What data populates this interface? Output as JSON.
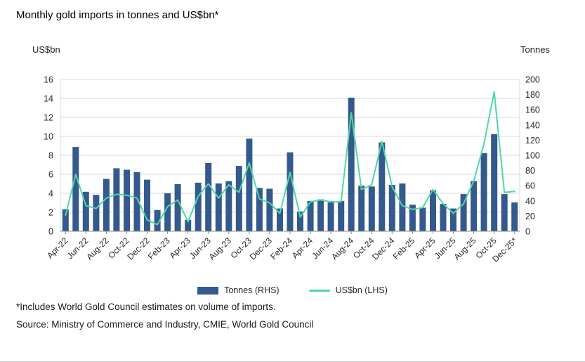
{
  "title": "Monthly gold imports in tonnes and US$bn*",
  "left_axis_unit": "US$bn",
  "right_axis_unit": "Tonnes",
  "legend": {
    "tonnes_label": "Tonnes (RHS)",
    "usdbn_label": "US$bn (LHS)"
  },
  "footnote": "*Includes World Gold Council estimates on volume of imports.",
  "source": "Source: Ministry of Commerce and Industry, CMIE, World Gold Council",
  "colors": {
    "bar": "#34598C",
    "line": "#4FD8A4",
    "grid": "#DADADA",
    "axis": "#999999",
    "text": "#262626"
  },
  "chart_data": {
    "type": "bar+line combo",
    "title": "Monthly gold imports in tonnes and US$bn*",
    "x": [
      "Apr-22",
      "May-22",
      "Jun-22",
      "Jul-22",
      "Aug-22",
      "Sep-22",
      "Oct-22",
      "Nov-22",
      "Dec-22",
      "Jan-23",
      "Feb-23",
      "Mar-23",
      "Apr-23",
      "May-23",
      "Jun-23",
      "Jul-23",
      "Aug-23",
      "Sep-23",
      "Oct-23",
      "Nov-23",
      "Dec-23",
      "Jan-24",
      "Feb-24",
      "Mar-24",
      "Apr-24",
      "May-24",
      "Jun-24",
      "Jul-24",
      "Aug-24",
      "Sep-24",
      "Oct-24",
      "Nov-24",
      "Dec-24",
      "Jan-25",
      "Feb-25",
      "Mar-25",
      "Apr-25",
      "May-25",
      "Jun-25",
      "Jul-25",
      "Aug-25",
      "Sep-25",
      "Oct-25",
      "Nov-25",
      "Dec-25*"
    ],
    "x_tick_every": 2,
    "series": [
      {
        "name": "Tonnes (RHS)",
        "type": "bar",
        "axis": "right",
        "values": [
          29,
          111,
          52,
          48,
          69,
          83,
          81,
          78,
          68,
          28,
          50,
          62,
          15,
          64,
          90,
          63,
          66,
          86,
          122,
          57,
          56,
          30,
          104,
          26,
          40,
          42,
          38,
          40,
          176,
          60,
          59,
          117,
          61,
          63,
          35,
          31,
          54,
          36,
          30,
          49,
          66,
          103,
          128,
          49,
          38
        ]
      },
      {
        "name": "US$bn (LHS)",
        "type": "line",
        "axis": "left",
        "values": [
          1.7,
          6.0,
          2.7,
          2.4,
          3.5,
          3.9,
          3.8,
          3.5,
          1.2,
          0.7,
          2.6,
          3.3,
          1.0,
          3.7,
          5.0,
          3.5,
          4.9,
          4.1,
          7.2,
          3.4,
          3.0,
          1.9,
          6.2,
          1.5,
          3.1,
          3.3,
          3.1,
          3.1,
          12.5,
          4.4,
          4.9,
          9.5,
          4.7,
          2.7,
          2.3,
          2.5,
          4.4,
          2.9,
          1.9,
          2.9,
          5.3,
          9.2,
          14.7,
          4.1,
          4.2
        ]
      }
    ],
    "left_axis": {
      "label": "US$bn",
      "min": 0,
      "max": 16,
      "step": 2
    },
    "right_axis": {
      "label": "Tonnes",
      "min": 0,
      "max": 200,
      "step": 20
    },
    "grid": true,
    "legend_position": "bottom"
  }
}
